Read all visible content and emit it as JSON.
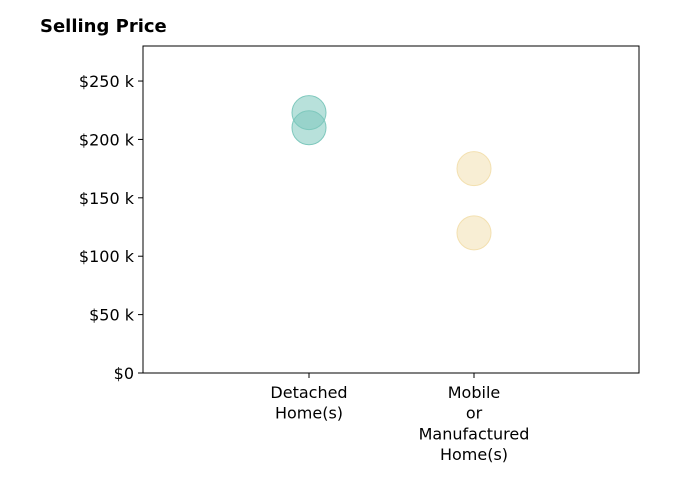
{
  "chart_data": {
    "type": "scatter",
    "title": "Selling Price",
    "xlabel": "",
    "ylabel": "",
    "categories": [
      [
        "Detached",
        "Home(s)"
      ],
      [
        "Mobile",
        "or",
        "Manufactured",
        "Home(s)"
      ]
    ],
    "ylim": [
      0,
      280000
    ],
    "yticks": [
      {
        "value": 0,
        "label": "$0"
      },
      {
        "value": 50000,
        "label": "$50 k"
      },
      {
        "value": 100000,
        "label": "$100 k"
      },
      {
        "value": 150000,
        "label": "$150 k"
      },
      {
        "value": 200000,
        "label": "$200 k"
      },
      {
        "value": 250000,
        "label": "$250 k"
      }
    ],
    "points": [
      {
        "category": 0,
        "y": 223000,
        "color": "#7ec8bd"
      },
      {
        "category": 0,
        "y": 210000,
        "color": "#7ec8bd"
      },
      {
        "category": 1,
        "y": 175000,
        "color": "#f3e0b0"
      },
      {
        "category": 1,
        "y": 120000,
        "color": "#f3e0b0"
      }
    ],
    "grid": false,
    "legend": "none"
  }
}
